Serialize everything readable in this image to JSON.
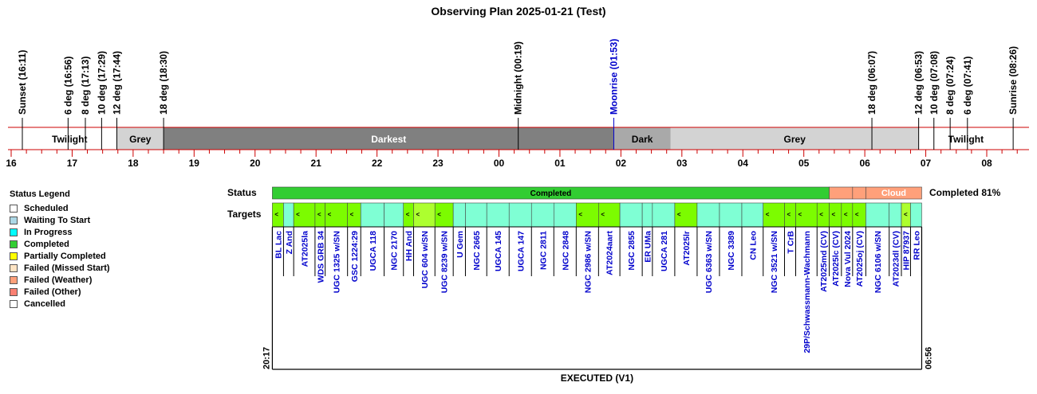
{
  "title": "Observing Plan 2025-01-21 (Test)",
  "legend": {
    "title": "Status Legend",
    "items": [
      {
        "label": "Scheduled",
        "color": "#ffffff"
      },
      {
        "label": "Waiting To Start",
        "color": "#add8e6"
      },
      {
        "label": "In Progress",
        "color": "#00ffff"
      },
      {
        "label": "Completed",
        "color": "#32cd32"
      },
      {
        "label": "Partially Completed",
        "color": "#ffff00"
      },
      {
        "label": "Failed (Missed Start)",
        "color": "#ffe4c4"
      },
      {
        "label": "Failed (Weather)",
        "color": "#ffa07a"
      },
      {
        "label": "Failed (Other)",
        "color": "#fa8072"
      },
      {
        "label": "Cancelled",
        "color": "#ffffff"
      }
    ]
  },
  "chart_data": {
    "type": "timeline",
    "time_axis": {
      "start": "15:43",
      "end": "08:43",
      "tick_labels": [
        "16",
        "17",
        "18",
        "19",
        "20",
        "21",
        "22",
        "23",
        "00",
        "01",
        "02",
        "03",
        "04",
        "05",
        "06",
        "07",
        "08"
      ]
    },
    "events": [
      {
        "label": "Sunset (16:11)",
        "time": "16:11",
        "color": "#000000"
      },
      {
        "label": "6 deg (16:56)",
        "time": "16:56",
        "color": "#000000"
      },
      {
        "label": "8 deg (17:13)",
        "time": "17:13",
        "color": "#000000"
      },
      {
        "label": "10 deg (17:29)",
        "time": "17:29",
        "color": "#000000"
      },
      {
        "label": "12 deg (17:44)",
        "time": "17:44",
        "color": "#000000"
      },
      {
        "label": "18 deg (18:30)",
        "time": "18:30",
        "color": "#000000"
      },
      {
        "label": "Midnight (00:19)",
        "time": "00:19",
        "color": "#000000"
      },
      {
        "label": "Moonrise (01:53)",
        "time": "01:53",
        "color": "#0000cc"
      },
      {
        "label": "18 deg (06:07)",
        "time": "06:07",
        "color": "#000000"
      },
      {
        "label": "12 deg (06:53)",
        "time": "06:53",
        "color": "#000000"
      },
      {
        "label": "10 deg (07:08)",
        "time": "07:08",
        "color": "#000000"
      },
      {
        "label": "8 deg (07:24)",
        "time": "07:24",
        "color": "#000000"
      },
      {
        "label": "6 deg (07:41)",
        "time": "07:41",
        "color": "#000000"
      },
      {
        "label": "Sunrise (08:26)",
        "time": "08:26",
        "color": "#000000"
      }
    ],
    "sky_bands": [
      {
        "label": "Twilight",
        "start": "16:11",
        "end": "17:44",
        "color": "#ffffff",
        "text_color": "#000000"
      },
      {
        "label": "Grey",
        "start": "17:44",
        "end": "18:30",
        "color": "#d3d3d3",
        "text_color": "#000000"
      },
      {
        "label": "Darkest",
        "start": "18:30",
        "end": "01:53",
        "color": "#808080",
        "text_color": "#ffffff"
      },
      {
        "label": "Dark",
        "start": "01:53",
        "end": "02:49",
        "color": "#a9a9a9",
        "text_color": "#000000"
      },
      {
        "label": "Grey",
        "start": "02:49",
        "end": "06:53",
        "color": "#d3d3d3",
        "text_color": "#000000"
      },
      {
        "label": "Twilight",
        "start": "06:53",
        "end": "08:26",
        "color": "#ffffff",
        "text_color": "#000000"
      }
    ],
    "status_row": {
      "label": "Status",
      "segments": [
        {
          "label": "Completed",
          "start": "20:17",
          "end": "05:25",
          "color": "#32cd32"
        },
        {
          "label": "",
          "start": "05:25",
          "end": "05:48",
          "color": "#ffa07a"
        },
        {
          "label": "",
          "start": "05:48",
          "end": "06:01",
          "color": "#ffa07a"
        },
        {
          "label": "Cloud",
          "start": "06:01",
          "end": "06:56",
          "color": "#ffa07a"
        }
      ],
      "summary": "Completed 81%"
    },
    "targets_row": {
      "label": "Targets",
      "targets": [
        {
          "name": "BL Lac",
          "start": "20:17",
          "end": "20:28",
          "color": "#7cfc00",
          "mark": "<",
          "name_color": "#0000cc"
        },
        {
          "name": "Z And",
          "start": "20:28",
          "end": "20:38",
          "color": "#7fffd4",
          "mark": "",
          "name_color": "#0000cc"
        },
        {
          "name": "AT2025la",
          "start": "20:38",
          "end": "20:59",
          "color": "#7cfc00",
          "mark": "<",
          "name_color": "#0000cc"
        },
        {
          "name": "WDS GRB 34",
          "start": "20:59",
          "end": "21:09",
          "color": "#7cfc00",
          "mark": "<",
          "name_color": "#0000cc"
        },
        {
          "name": "UGC 1325 w/SN",
          "start": "21:09",
          "end": "21:31",
          "color": "#7cfc00",
          "mark": "<",
          "name_color": "#0000cc"
        },
        {
          "name": "GSC 1224:29",
          "start": "21:31",
          "end": "21:44",
          "color": "#7cfc00",
          "mark": "<",
          "name_color": "#0000cc"
        },
        {
          "name": "UGCA 118",
          "start": "21:44",
          "end": "22:07",
          "color": "#7fffd4",
          "mark": "",
          "name_color": "#0000cc"
        },
        {
          "name": "NGC 2170",
          "start": "22:07",
          "end": "22:26",
          "color": "#7fffd4",
          "mark": "",
          "name_color": "#0000cc"
        },
        {
          "name": "HH And",
          "start": "22:26",
          "end": "22:36",
          "color": "#7cfc00",
          "mark": "<",
          "name_color": "#0000cc"
        },
        {
          "name": "UGC 604 w/SN",
          "start": "22:36",
          "end": "22:57",
          "color": "#adff2f",
          "mark": "<",
          "name_color": "#0000cc"
        },
        {
          "name": "UGC 8239 w/SN",
          "start": "22:57",
          "end": "23:15",
          "color": "#7cfc00",
          "mark": "<",
          "name_color": "#0000cc"
        },
        {
          "name": "U Gem",
          "start": "23:15",
          "end": "23:27",
          "color": "#7fffd4",
          "mark": "",
          "name_color": "#0000cc"
        },
        {
          "name": "NGC 2665",
          "start": "23:27",
          "end": "23:48",
          "color": "#7fffd4",
          "mark": "",
          "name_color": "#0000cc"
        },
        {
          "name": "UGCA 145",
          "start": "23:48",
          "end": "00:10",
          "color": "#7fffd4",
          "mark": "",
          "name_color": "#0000cc"
        },
        {
          "name": "UGCA 147",
          "start": "00:10",
          "end": "00:32",
          "color": "#7fffd4",
          "mark": "",
          "name_color": "#0000cc"
        },
        {
          "name": "NGC 2811",
          "start": "00:32",
          "end": "00:54",
          "color": "#7fffd4",
          "mark": "",
          "name_color": "#0000cc"
        },
        {
          "name": "NGC 2848",
          "start": "00:54",
          "end": "01:16",
          "color": "#7fffd4",
          "mark": "",
          "name_color": "#0000cc"
        },
        {
          "name": "NGC 2986 w/SN",
          "start": "01:16",
          "end": "01:38",
          "color": "#7cfc00",
          "mark": "<",
          "name_color": "#0000cc"
        },
        {
          "name": "AT2024aart",
          "start": "01:38",
          "end": "01:59",
          "color": "#7cfc00",
          "mark": "<",
          "name_color": "#0000cc"
        },
        {
          "name": "NGC 2855",
          "start": "01:59",
          "end": "02:21",
          "color": "#7fffd4",
          "mark": "",
          "name_color": "#0000cc"
        },
        {
          "name": "ER UMa",
          "start": "02:21",
          "end": "02:31",
          "color": "#7fffd4",
          "mark": "",
          "name_color": "#0000cc"
        },
        {
          "name": "UGCA 281",
          "start": "02:31",
          "end": "02:53",
          "color": "#7fffd4",
          "mark": "",
          "name_color": "#0000cc"
        },
        {
          "name": "AT2025lr",
          "start": "02:53",
          "end": "03:15",
          "color": "#7cfc00",
          "mark": "<",
          "name_color": "#0000cc"
        },
        {
          "name": "UGC 6363 w/SN",
          "start": "03:15",
          "end": "03:37",
          "color": "#7fffd4",
          "mark": "",
          "name_color": "#0000cc"
        },
        {
          "name": "NGC 3389",
          "start": "03:37",
          "end": "03:59",
          "color": "#7fffd4",
          "mark": "",
          "name_color": "#0000cc"
        },
        {
          "name": "CN Leo",
          "start": "03:59",
          "end": "04:20",
          "color": "#7fffd4",
          "mark": "",
          "name_color": "#0000cc"
        },
        {
          "name": "NGC 3521 w/SN",
          "start": "04:20",
          "end": "04:41",
          "color": "#7cfc00",
          "mark": "<",
          "name_color": "#0000cc"
        },
        {
          "name": "T CrB",
          "start": "04:41",
          "end": "04:52",
          "color": "#7cfc00",
          "mark": "<",
          "name_color": "#0000cc"
        },
        {
          "name": "29P/Schwassmann-Wachmann",
          "start": "04:52",
          "end": "05:13",
          "color": "#7cfc00",
          "mark": "<",
          "name_color": "#0000cc"
        },
        {
          "name": "AT2025md (CV)",
          "start": "05:13",
          "end": "05:25",
          "color": "#7cfc00",
          "mark": "<",
          "name_color": "#0000cc"
        },
        {
          "name": "AT2025lc (CV)",
          "start": "05:25",
          "end": "05:37",
          "color": "#7cfc00",
          "mark": "<",
          "name_color": "#0000cc"
        },
        {
          "name": "Nova Vul 2024",
          "start": "05:37",
          "end": "05:48",
          "color": "#7cfc00",
          "mark": "<",
          "name_color": "#0000cc"
        },
        {
          "name": "AT2025oj (CV)",
          "start": "05:48",
          "end": "06:01",
          "color": "#7cfc00",
          "mark": "<",
          "name_color": "#0000cc"
        },
        {
          "name": "NGC 6106 w/SN",
          "start": "06:01",
          "end": "06:24",
          "color": "#7fffd4",
          "mark": "",
          "name_color": "#0000cc"
        },
        {
          "name": "AT2023dl (CV)",
          "start": "06:24",
          "end": "06:36",
          "color": "#7fffd4",
          "mark": "",
          "name_color": "#0000cc"
        },
        {
          "name": "HIP 87937",
          "start": "06:36",
          "end": "06:45",
          "color": "#adff2f",
          "mark": "<",
          "name_color": "#0000cc"
        },
        {
          "name": "RR Leo",
          "start": "06:45",
          "end": "06:56",
          "color": "#7fffd4",
          "mark": "",
          "name_color": "#0000cc"
        }
      ]
    },
    "execution": {
      "start_label": "20:17",
      "end_label": "06:56",
      "label": "EXECUTED (V1)"
    }
  }
}
